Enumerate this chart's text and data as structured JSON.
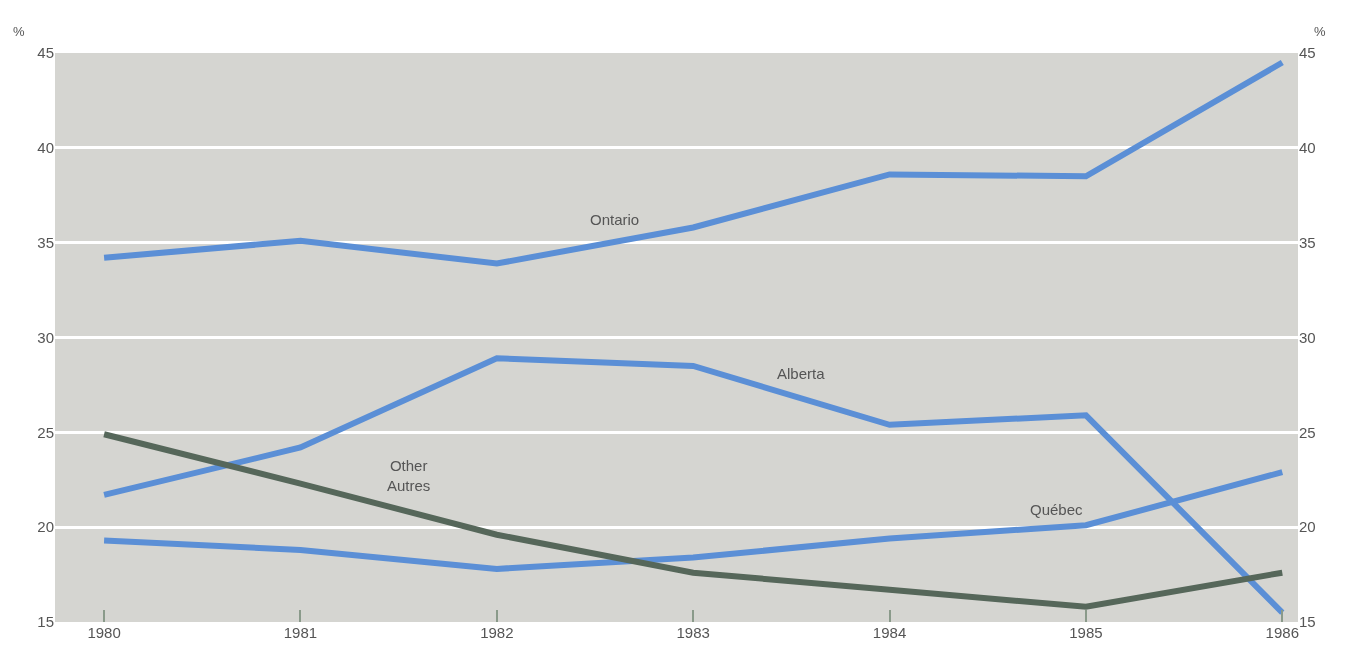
{
  "chart_data": {
    "type": "line",
    "ylabel": "%",
    "y2label": "%",
    "x": [
      1980,
      1981,
      1982,
      1983,
      1984,
      1985,
      1986
    ],
    "xlim": [
      1979.75,
      1986.08
    ],
    "xticks": [
      1980,
      1981,
      1982,
      1983,
      1984,
      1985,
      1986
    ],
    "ylim": [
      15,
      45
    ],
    "yticks": [
      15,
      20,
      25,
      30,
      35,
      40,
      45
    ],
    "y2lim": [
      15,
      45
    ],
    "y2ticks": [
      15,
      20,
      25,
      30,
      35,
      40,
      45
    ],
    "grid": "y",
    "legend": false,
    "marker": "none",
    "line_style": "solid",
    "series": [
      {
        "name": "Ontario",
        "color": "#5b8fd6",
        "values": [
          34.2,
          35.1,
          33.9,
          35.8,
          38.6,
          38.5,
          44.5
        ]
      },
      {
        "name": "Alberta",
        "color": "#5b8fd6",
        "values": [
          21.7,
          24.2,
          28.9,
          28.5,
          25.4,
          25.9,
          15.5
        ]
      },
      {
        "name": "Québec",
        "color": "#5b8fd6",
        "values": [
          19.3,
          18.8,
          17.8,
          18.4,
          19.4,
          20.1,
          22.9
        ]
      },
      {
        "name": "Other\nAutres",
        "color": "#56675a",
        "values": [
          24.9,
          22.3,
          19.6,
          17.6,
          16.7,
          15.8,
          17.6
        ]
      }
    ]
  }
}
